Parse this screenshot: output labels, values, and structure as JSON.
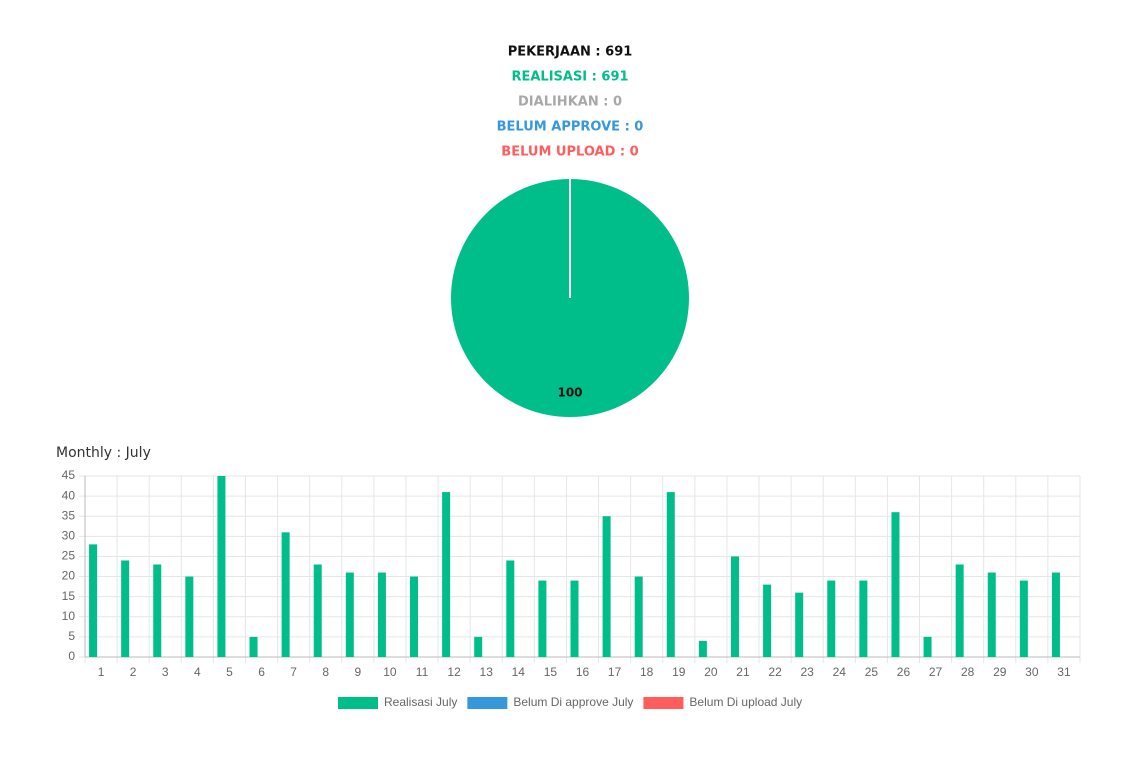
{
  "chart_data": [
    {
      "type": "pie",
      "annotations": [
        {
          "text": "PEKERJAAN : 691",
          "color": "#111111"
        },
        {
          "text": "REALISASI : 691",
          "color": "#00be8a"
        },
        {
          "text": "DIALIHKAN : 0",
          "color": "#a8a8a8"
        },
        {
          "text": "BELUM APPROVE : 0",
          "color": "#3498db"
        },
        {
          "text": "BELUM UPLOAD : 0",
          "color": "#ff5c5c"
        }
      ],
      "categories": [
        null
      ],
      "values": [
        100
      ],
      "colors": [
        "#00be8a"
      ]
    },
    {
      "type": "bar",
      "title": "Monthly : July",
      "categories": [
        "1",
        "2",
        "3",
        "4",
        "5",
        "6",
        "7",
        "8",
        "9",
        "10",
        "11",
        "12",
        "13",
        "14",
        "15",
        "16",
        "17",
        "18",
        "19",
        "20",
        "21",
        "22",
        "23",
        "24",
        "25",
        "26",
        "27",
        "28",
        "29",
        "30",
        "31"
      ],
      "series": [
        {
          "name": "Realisasi July",
          "color": "#00be8a",
          "values": [
            28,
            24,
            23,
            20,
            45,
            5,
            31,
            23,
            21,
            21,
            20,
            41,
            5,
            24,
            19,
            19,
            35,
            20,
            41,
            4,
            25,
            18,
            16,
            19,
            19,
            36,
            5,
            23,
            21,
            19,
            21
          ]
        },
        {
          "name": "Belum Di approve July",
          "color": "#3498db",
          "values": [
            0,
            0,
            0,
            0,
            0,
            0,
            0,
            0,
            0,
            0,
            0,
            0,
            0,
            0,
            0,
            0,
            0,
            0,
            0,
            0,
            0,
            0,
            0,
            0,
            0,
            0,
            0,
            0,
            0,
            0,
            0
          ]
        },
        {
          "name": "Belum Di upload July",
          "color": "#ff5c5c",
          "values": [
            0,
            0,
            0,
            0,
            0,
            0,
            0,
            0,
            0,
            0,
            0,
            0,
            0,
            0,
            0,
            0,
            0,
            0,
            0,
            0,
            0,
            0,
            0,
            0,
            0,
            0,
            0,
            0,
            0,
            0,
            0
          ]
        }
      ],
      "ylim": [
        0,
        45
      ],
      "yticks": [
        0,
        5,
        10,
        15,
        20,
        25,
        30,
        35,
        40,
        45
      ],
      "grid": true,
      "legend": "bottom"
    }
  ]
}
